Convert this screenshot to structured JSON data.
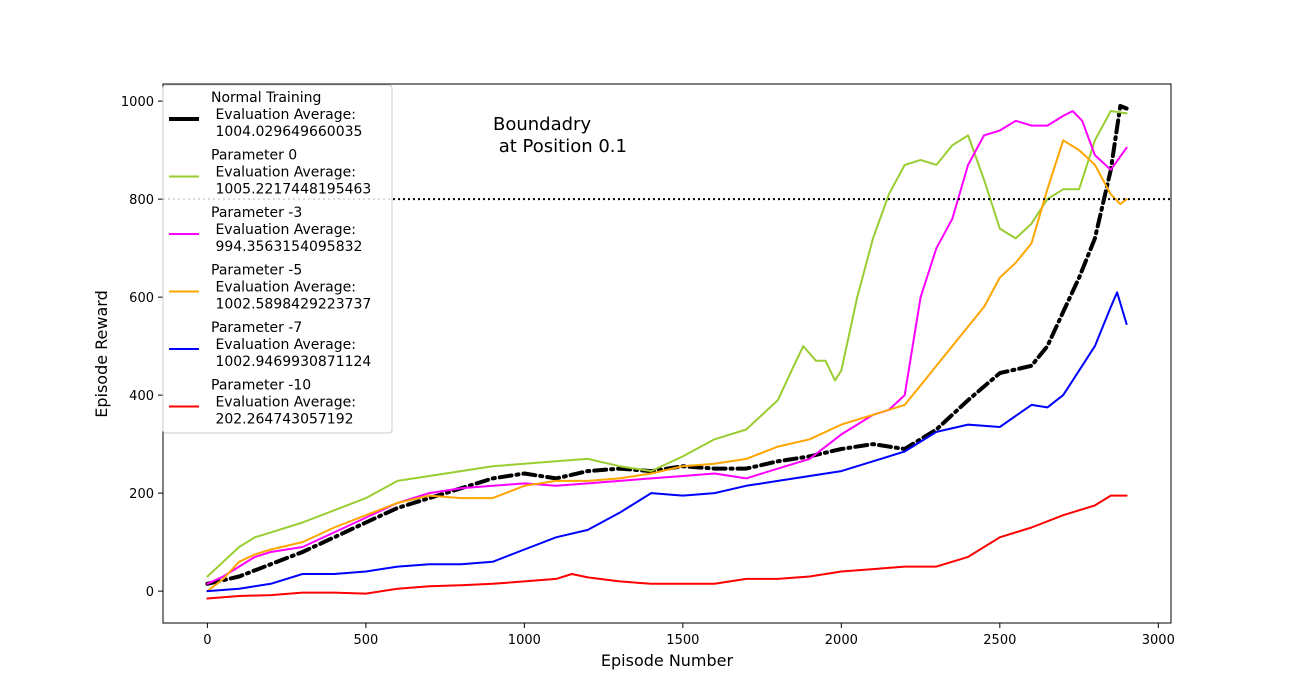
{
  "chart_data": {
    "type": "line",
    "title": "",
    "xlabel": "Episode Number",
    "ylabel": "Episode Reward",
    "xlim": [
      -140,
      3040
    ],
    "ylim": [
      -65,
      1035
    ],
    "x_ticks": [
      0,
      500,
      1000,
      1500,
      2000,
      2500,
      3000
    ],
    "y_ticks": [
      0,
      200,
      400,
      600,
      800,
      1000
    ],
    "grid": false,
    "legend_position": "upper-left",
    "annotation": {
      "lines": [
        "Boundadry",
        " at Position 0.1"
      ],
      "x": 900,
      "y": 950
    },
    "threshold": {
      "y": 800,
      "style": "dotted",
      "color": "#000000"
    },
    "series": [
      {
        "name_lines": [
          "Normal Training",
          " Evaluation Average:",
          " 1004.029649660035"
        ],
        "color": "#000000",
        "style": "dashdot",
        "width": 4,
        "x": [
          0,
          100,
          200,
          300,
          400,
          500,
          600,
          700,
          800,
          900,
          1000,
          1100,
          1200,
          1300,
          1400,
          1500,
          1600,
          1700,
          1800,
          1900,
          2000,
          2100,
          2200,
          2300,
          2400,
          2500,
          2600,
          2650,
          2700,
          2750,
          2800,
          2850,
          2880,
          2900
        ],
        "y": [
          15,
          30,
          55,
          80,
          110,
          140,
          170,
          190,
          210,
          230,
          240,
          230,
          245,
          250,
          245,
          255,
          250,
          250,
          265,
          275,
          290,
          300,
          290,
          330,
          390,
          445,
          460,
          500,
          570,
          640,
          720,
          860,
          990,
          985
        ]
      },
      {
        "name_lines": [
          "Parameter 0",
          " Evaluation Average:",
          " 1005.2217448195463"
        ],
        "color": "#9acd32",
        "style": "solid",
        "width": 2,
        "x": [
          0,
          50,
          100,
          150,
          200,
          300,
          400,
          500,
          600,
          700,
          800,
          900,
          1000,
          1100,
          1200,
          1300,
          1400,
          1500,
          1600,
          1700,
          1800,
          1850,
          1880,
          1920,
          1950,
          1980,
          2000,
          2050,
          2100,
          2150,
          2200,
          2250,
          2300,
          2350,
          2400,
          2450,
          2500,
          2550,
          2600,
          2650,
          2700,
          2750,
          2800,
          2850,
          2900
        ],
        "y": [
          30,
          60,
          90,
          110,
          120,
          140,
          165,
          190,
          225,
          235,
          245,
          255,
          260,
          265,
          270,
          255,
          245,
          275,
          310,
          330,
          390,
          460,
          500,
          470,
          470,
          430,
          450,
          600,
          720,
          810,
          870,
          880,
          870,
          910,
          930,
          840,
          740,
          720,
          750,
          800,
          820,
          820,
          920,
          980,
          975
        ]
      },
      {
        "name_lines": [
          "Parameter -3",
          " Evaluation Average:",
          " 994.3563154095832"
        ],
        "color": "#ff00ff",
        "style": "solid",
        "width": 2,
        "x": [
          0,
          50,
          100,
          150,
          200,
          300,
          400,
          500,
          600,
          700,
          800,
          900,
          1000,
          1100,
          1200,
          1300,
          1400,
          1500,
          1600,
          1700,
          1800,
          1900,
          2000,
          2050,
          2100,
          2150,
          2200,
          2250,
          2300,
          2350,
          2400,
          2450,
          2500,
          2550,
          2600,
          2650,
          2700,
          2730,
          2760,
          2800,
          2850,
          2900
        ],
        "y": [
          15,
          30,
          50,
          70,
          80,
          90,
          120,
          150,
          180,
          200,
          210,
          215,
          220,
          215,
          220,
          225,
          230,
          235,
          240,
          230,
          250,
          270,
          320,
          340,
          360,
          370,
          400,
          600,
          700,
          760,
          870,
          930,
          940,
          960,
          950,
          950,
          970,
          980,
          960,
          890,
          860,
          905
        ]
      },
      {
        "name_lines": [
          "Parameter -5",
          " Evaluation Average:",
          " 1002.5898429223737"
        ],
        "color": "#ffa500",
        "style": "solid",
        "width": 2,
        "x": [
          0,
          50,
          100,
          150,
          200,
          300,
          400,
          500,
          600,
          700,
          800,
          900,
          1000,
          1100,
          1200,
          1300,
          1400,
          1500,
          1600,
          1700,
          1800,
          1900,
          2000,
          2100,
          2200,
          2250,
          2300,
          2350,
          2400,
          2450,
          2500,
          2550,
          2600,
          2650,
          2700,
          2750,
          2800,
          2850,
          2880,
          2900
        ],
        "y": [
          0,
          25,
          60,
          75,
          85,
          100,
          130,
          155,
          180,
          195,
          190,
          190,
          215,
          225,
          225,
          230,
          240,
          255,
          260,
          270,
          295,
          310,
          340,
          360,
          380,
          420,
          460,
          500,
          540,
          580,
          640,
          670,
          710,
          820,
          920,
          900,
          870,
          810,
          790,
          800
        ]
      },
      {
        "name_lines": [
          "Parameter -7",
          " Evaluation Average:",
          " 1002.9469930871124"
        ],
        "color": "#0000ff",
        "style": "solid",
        "width": 2,
        "x": [
          0,
          100,
          200,
          300,
          400,
          500,
          600,
          700,
          800,
          900,
          1000,
          1100,
          1200,
          1300,
          1400,
          1500,
          1600,
          1700,
          1800,
          1900,
          2000,
          2100,
          2200,
          2300,
          2400,
          2500,
          2600,
          2650,
          2700,
          2750,
          2800,
          2850,
          2870,
          2900
        ],
        "y": [
          0,
          5,
          15,
          35,
          35,
          40,
          50,
          55,
          55,
          60,
          85,
          110,
          125,
          160,
          200,
          195,
          200,
          215,
          225,
          235,
          245,
          265,
          285,
          325,
          340,
          335,
          380,
          375,
          400,
          450,
          500,
          580,
          610,
          545
        ]
      },
      {
        "name_lines": [
          "Parameter -10",
          " Evaluation Average:",
          " 202.264743057192"
        ],
        "color": "#ff0000",
        "style": "solid",
        "width": 2,
        "x": [
          0,
          100,
          200,
          300,
          400,
          500,
          600,
          700,
          800,
          900,
          1000,
          1100,
          1150,
          1200,
          1300,
          1400,
          1500,
          1600,
          1700,
          1800,
          1900,
          2000,
          2100,
          2200,
          2300,
          2400,
          2500,
          2600,
          2700,
          2800,
          2850,
          2900
        ],
        "y": [
          -15,
          -10,
          -8,
          -3,
          -3,
          -5,
          5,
          10,
          12,
          15,
          20,
          25,
          35,
          28,
          20,
          15,
          15,
          15,
          25,
          25,
          30,
          40,
          45,
          50,
          50,
          70,
          110,
          130,
          155,
          175,
          195,
          195
        ]
      }
    ]
  }
}
